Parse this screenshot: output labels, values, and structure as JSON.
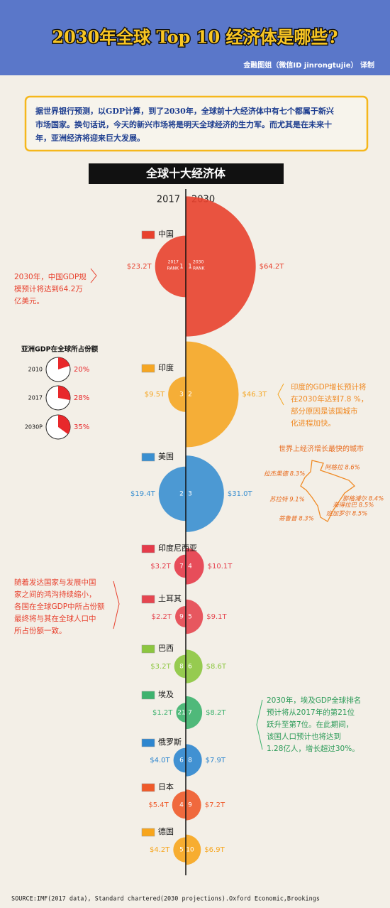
{
  "header": {
    "title": "2030年全球 Top 10 经济体是哪些?",
    "credit": "金融图姐（微信ID jinrongtujie） 译制"
  },
  "intro": [
    "据世界银行预测，以GDP计算，到了2030年，全球前十大经济体中有七个都属于新兴",
    "市场国家。换句话说，今天的新兴市场将是明天全球经济的生力军。而尤其是在未来十",
    "年，亚洲经济将迎来巨大发展。"
  ],
  "section_title": "全球十大经济体",
  "years": [
    "2017",
    "2030"
  ],
  "rank_labels": [
    [
      "2017",
      "RANK"
    ],
    [
      "2030",
      "RANK"
    ]
  ],
  "countries": [
    {
      "name": "中国",
      "rank_2017": 1,
      "rank_2030": 1,
      "gdp_2017": 23.2,
      "gdp_2017_label": "$23.2T",
      "gdp_2030": 64.2,
      "gdp_2030_label": "$64.2T"
    },
    {
      "name": "印度",
      "rank_2017": 3,
      "rank_2030": 2,
      "gdp_2017": 9.5,
      "gdp_2017_label": "$9.5T",
      "gdp_2030": 46.3,
      "gdp_2030_label": "$46.3T"
    },
    {
      "name": "美国",
      "rank_2017": 2,
      "rank_2030": 3,
      "gdp_2017": 19.4,
      "gdp_2017_label": "$19.4T",
      "gdp_2030": 31.0,
      "gdp_2030_label": "$31.0T"
    },
    {
      "name": "印度尼西亚",
      "rank_2017": 7,
      "rank_2030": 4,
      "gdp_2017": 3.2,
      "gdp_2017_label": "$3.2T",
      "gdp_2030": 10.1,
      "gdp_2030_label": "$10.1T"
    },
    {
      "name": "土耳其",
      "rank_2017": 9,
      "rank_2030": 5,
      "gdp_2017": 2.2,
      "gdp_2017_label": "$2.2T",
      "gdp_2030": 9.1,
      "gdp_2030_label": "$9.1T"
    },
    {
      "name": "巴西",
      "rank_2017": 8,
      "rank_2030": 6,
      "gdp_2017": 3.2,
      "gdp_2017_label": "$3.2T",
      "gdp_2030": 8.6,
      "gdp_2030_label": "$8.6T"
    },
    {
      "name": "埃及",
      "rank_2017": 21,
      "rank_2030": 7,
      "gdp_2017": 1.2,
      "gdp_2017_label": "$1.2T",
      "gdp_2030": 8.2,
      "gdp_2030_label": "$8.2T"
    },
    {
      "name": "俄罗斯",
      "rank_2017": 6,
      "rank_2030": 8,
      "gdp_2017": 4.0,
      "gdp_2017_label": "$4.0T",
      "gdp_2030": 7.9,
      "gdp_2030_label": "$7.9T"
    },
    {
      "name": "日本",
      "rank_2017": 4,
      "rank_2030": 9,
      "gdp_2017": 5.4,
      "gdp_2017_label": "$5.4T",
      "gdp_2030": 7.2,
      "gdp_2030_label": "$7.2T"
    },
    {
      "name": "德国",
      "rank_2017": 5,
      "rank_2030": 10,
      "gdp_2017": 4.2,
      "gdp_2017_label": "$4.2T",
      "gdp_2030": 6.9,
      "gdp_2030_label": "$6.9T"
    }
  ],
  "notes": {
    "china": [
      "2030年，中国GDP规",
      "模预计将达到64.2万",
      "亿美元。"
    ],
    "india": [
      "印度的GDP增长预计将",
      "在2030年达到7.8 %，",
      "部分原因是该国城市",
      "化进程加快。"
    ],
    "convergence": [
      "随着发达国家与发展中国",
      "家之间的鸿沟持续缩小，",
      "各国在全球GDP中所占份额",
      "最终将与其在全球人口中",
      "所占份额一致。"
    ],
    "egypt": [
      "2030年，埃及GDP全球排名",
      "预计将从2017年的第21位",
      "跃升至第7位。在此期间，",
      "该国人口预计也将达到",
      "1.28亿人，增长超过30%。"
    ]
  },
  "asia_share": {
    "title": "亚洲GDP在全球所占份额",
    "rows": [
      {
        "year": "2010",
        "value": 20,
        "label": "20%"
      },
      {
        "year": "2017",
        "value": 28,
        "label": "28%"
      },
      {
        "year": "2030P",
        "value": 35,
        "label": "35%"
      }
    ]
  },
  "cities": {
    "title": "世界上经济增长最快的城市",
    "items": [
      "阿格拉 8.6%",
      "拉杰果德 8.3%",
      "那格浦尔 8.4%",
      "苏拉特 9.1%",
      "海得拉巴 8.5%",
      "班加罗尔 8.5%",
      "蒂鲁普 8.3%"
    ]
  },
  "source": "SOURCE:IMF(2017 data), Standard chartered(2030 projections).Oxford Economic,Brookings"
}
